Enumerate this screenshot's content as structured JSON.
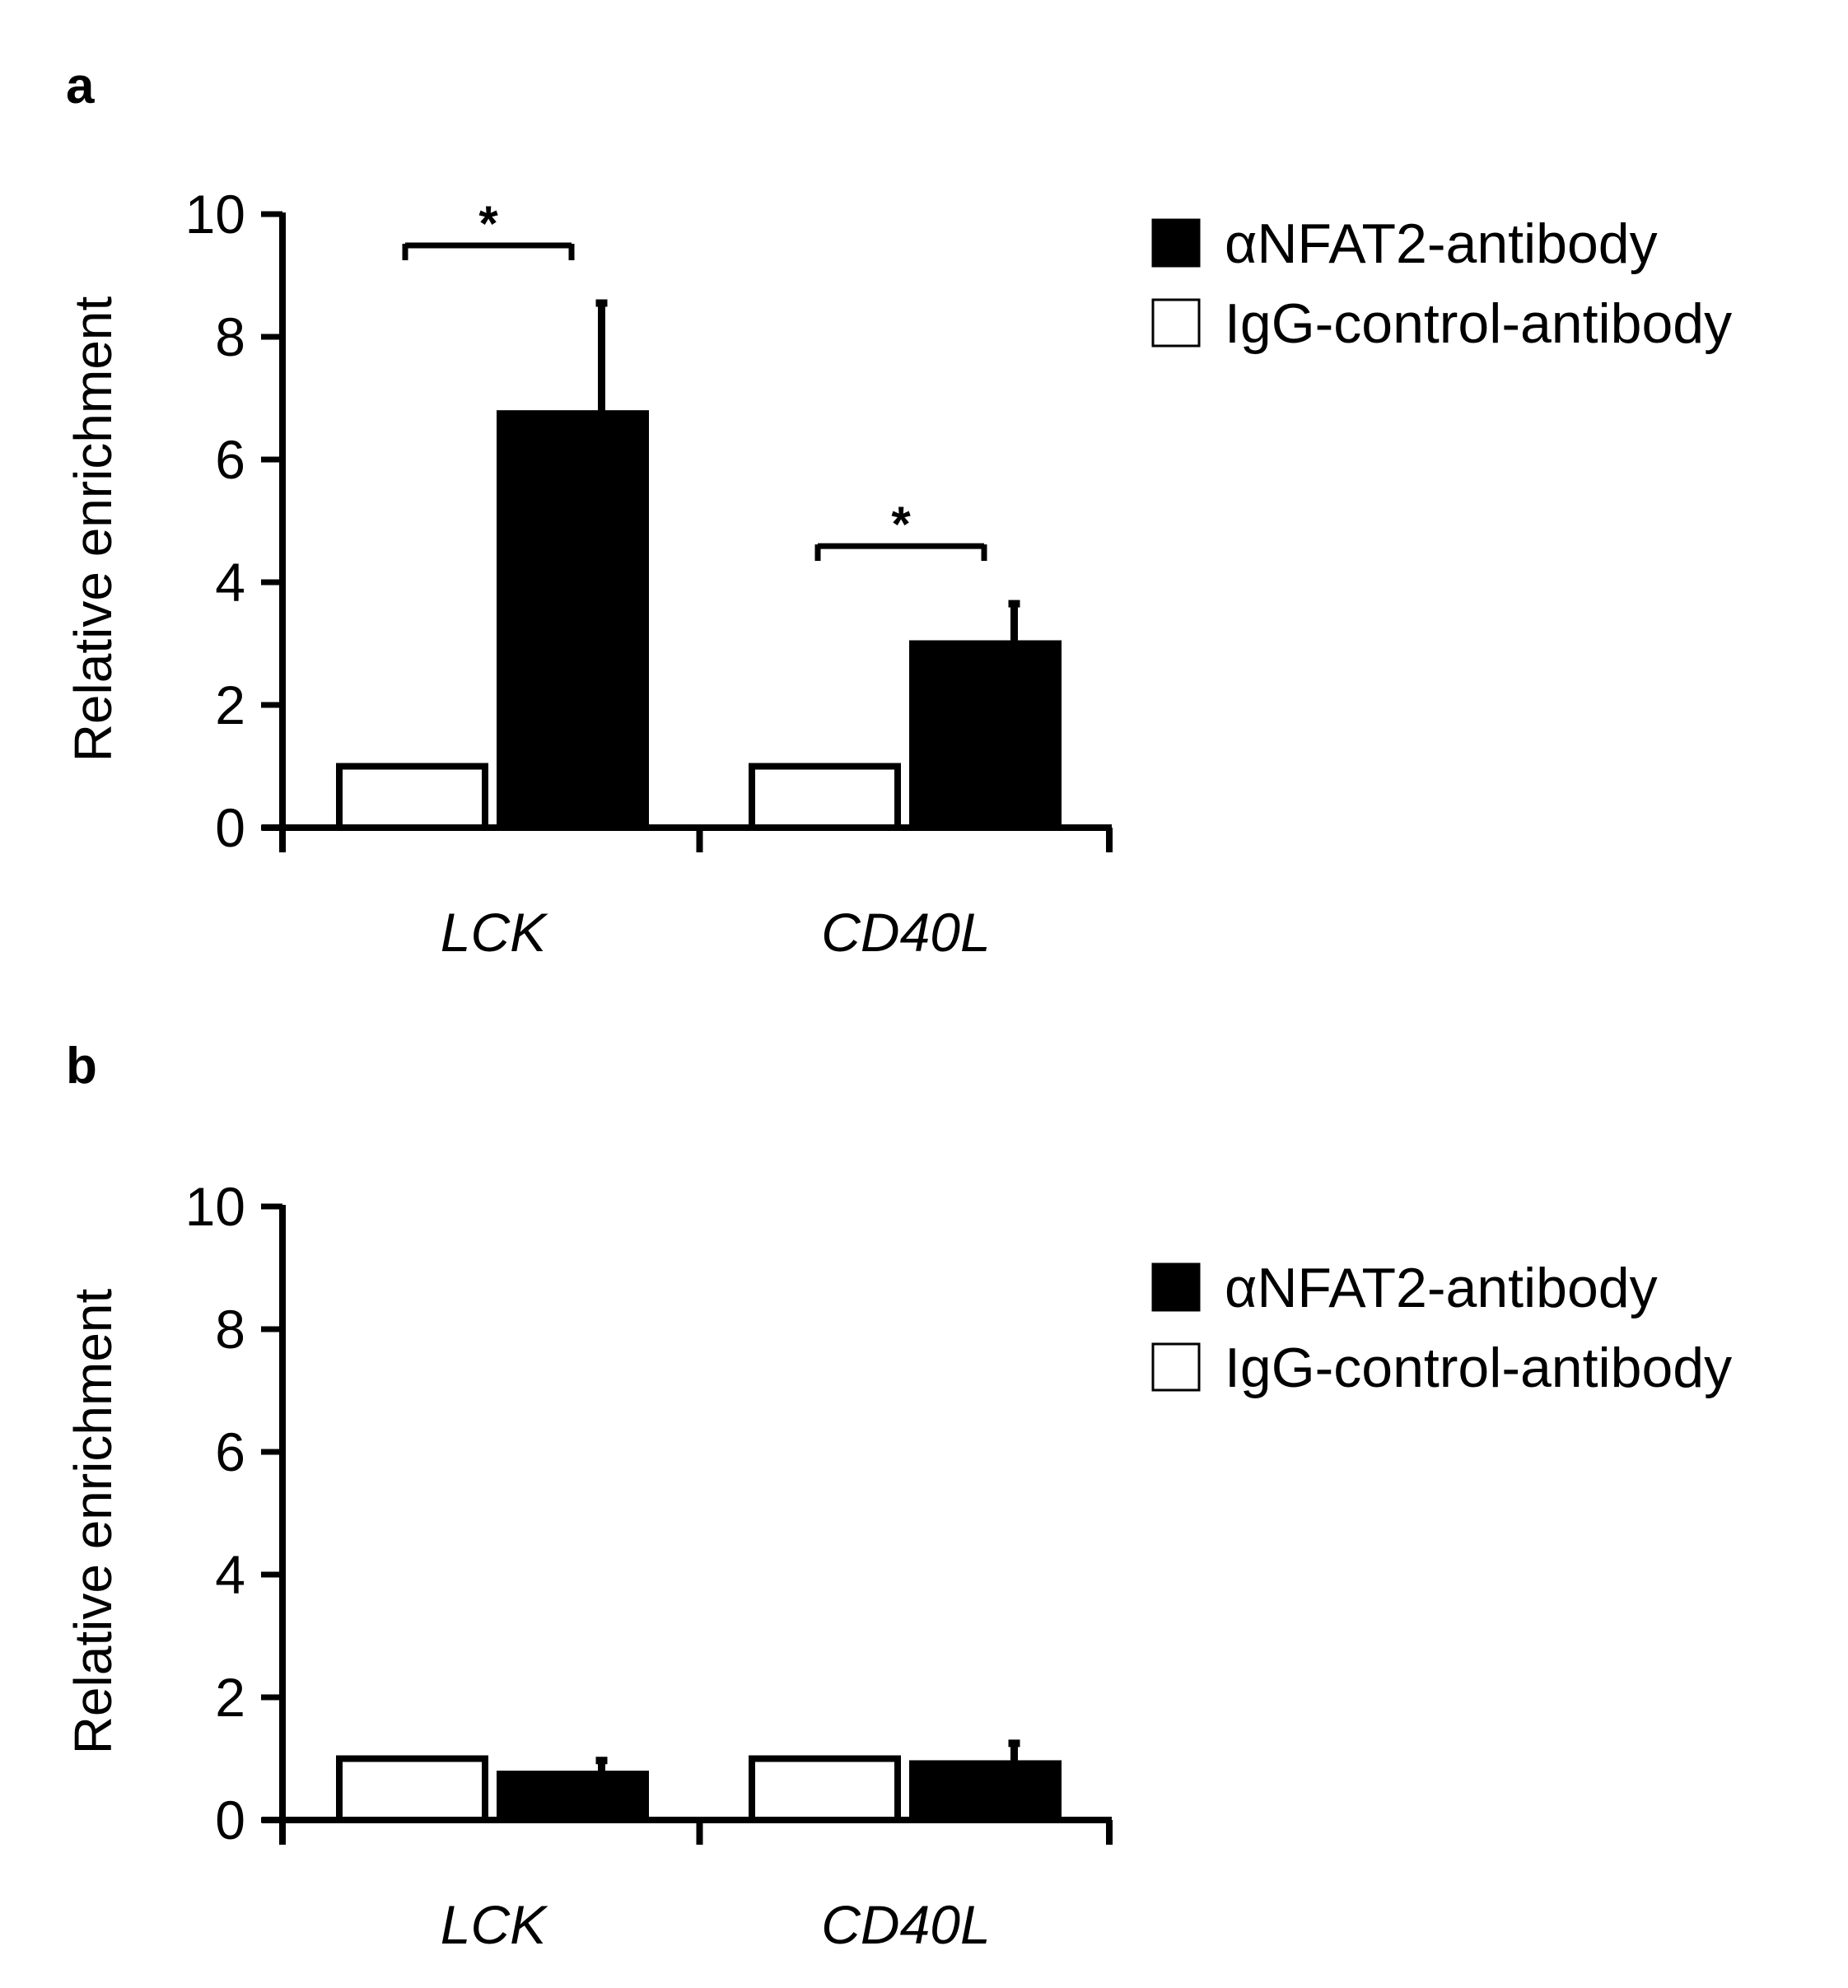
{
  "chart_data": [
    {
      "panel": "a",
      "type": "bar",
      "categories": [
        "LCK",
        "CD40L"
      ],
      "ylabel": "Relative enrichment",
      "ylim": [
        0,
        10
      ],
      "yticks": [
        "0",
        "2",
        "4",
        "6",
        "8",
        "10"
      ],
      "series": [
        {
          "name": "IgG-control-antibody",
          "color": "#ffffff",
          "values": [
            1.0,
            1.0
          ],
          "errors": [
            0,
            0
          ]
        },
        {
          "name": "αNFAT2-antibody",
          "color": "#000000",
          "values": [
            6.75,
            3.0
          ],
          "errors": [
            1.8,
            0.65
          ]
        }
      ],
      "significance": [
        {
          "category": "LCK",
          "label": "*"
        },
        {
          "category": "CD40L",
          "label": "*"
        }
      ],
      "legend": [
        "αNFAT2-antibody",
        "IgG-control-antibody"
      ]
    },
    {
      "panel": "b",
      "type": "bar",
      "categories": [
        "LCK",
        "CD40L"
      ],
      "ylabel": "Relative enrichment",
      "ylim": [
        0,
        10
      ],
      "yticks": [
        "0",
        "2",
        "4",
        "6",
        "8",
        "10"
      ],
      "series": [
        {
          "name": "IgG-control-antibody",
          "color": "#ffffff",
          "values": [
            1.0,
            1.0
          ],
          "errors": [
            0,
            0
          ]
        },
        {
          "name": "αNFAT2-antibody",
          "color": "#000000",
          "values": [
            0.75,
            0.92
          ],
          "errors": [
            0.22,
            0.33
          ]
        }
      ],
      "significance": [],
      "legend": [
        "αNFAT2-antibody",
        "IgG-control-antibody"
      ]
    }
  ]
}
